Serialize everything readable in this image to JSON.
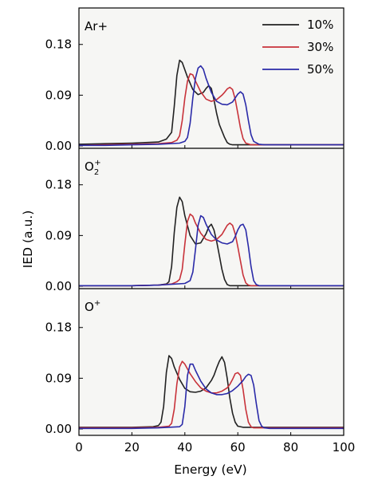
{
  "chart_data": {
    "type": "line",
    "xlabel": "Energy (eV)",
    "ylabel": "IED (a.u.)",
    "xlim": [
      0,
      100
    ],
    "ylim": [
      0,
      0.2
    ],
    "x_ticks": [
      "0",
      "20",
      "40",
      "60",
      "80",
      "100"
    ],
    "y_ticks": [
      "0.00",
      "0.09",
      "0.18"
    ],
    "grid": false,
    "legend": {
      "placement": "top-right of top panel",
      "entries": [
        {
          "label": "10%",
          "color": "#222222"
        },
        {
          "label": "30%",
          "color": "#c8323a"
        },
        {
          "label": "50%",
          "color": "#2a2aa8"
        }
      ]
    },
    "panels": [
      {
        "label": {
          "base": "Ar",
          "sup": "+",
          "inline": true
        },
        "series": [
          {
            "name": "10%",
            "color": "#222222",
            "x": [
              0,
              10,
              20,
              30,
              33,
              35,
              36,
              37,
              38,
              39,
              41,
              43,
              45,
              47,
              48,
              49,
              50,
              51,
              52,
              53,
              55,
              56,
              57,
              58,
              60,
              70,
              80,
              100
            ],
            "y": [
              0.003,
              0.004,
              0.005,
              0.007,
              0.012,
              0.024,
              0.07,
              0.125,
              0.152,
              0.148,
              0.122,
              0.1,
              0.091,
              0.095,
              0.102,
              0.107,
              0.102,
              0.082,
              0.058,
              0.038,
              0.015,
              0.006,
              0.003,
              0.002,
              0.002,
              0.002,
              0.002,
              0.002
            ]
          },
          {
            "name": "30%",
            "color": "#c8323a",
            "x": [
              0,
              10,
              20,
              30,
              35,
              37,
              38,
              39,
              40,
              41,
              42,
              43,
              44,
              46,
              48,
              50,
              52,
              54,
              55,
              56,
              57,
              58,
              59,
              60,
              61,
              62,
              63,
              65,
              70,
              80,
              100
            ],
            "y": [
              0.001,
              0.002,
              0.003,
              0.004,
              0.006,
              0.01,
              0.018,
              0.045,
              0.085,
              0.115,
              0.128,
              0.126,
              0.115,
              0.096,
              0.083,
              0.079,
              0.082,
              0.09,
              0.095,
              0.101,
              0.104,
              0.1,
              0.083,
              0.058,
              0.032,
              0.013,
              0.005,
              0.002,
              0.002,
              0.002,
              0.002
            ]
          },
          {
            "name": "50%",
            "color": "#2a2aa8",
            "x": [
              0,
              10,
              20,
              30,
              38,
              40,
              41,
              42,
              43,
              44,
              45,
              46,
              47,
              48,
              50,
              52,
              54,
              56,
              58,
              59,
              60,
              61,
              62,
              63,
              64,
              65,
              66,
              68,
              70,
              80,
              100
            ],
            "y": [
              0.001,
              0.001,
              0.002,
              0.003,
              0.005,
              0.008,
              0.015,
              0.04,
              0.085,
              0.12,
              0.138,
              0.142,
              0.136,
              0.12,
              0.095,
              0.079,
              0.074,
              0.073,
              0.078,
              0.085,
              0.092,
              0.096,
              0.092,
              0.073,
              0.045,
              0.02,
              0.008,
              0.003,
              0.002,
              0.002,
              0.002
            ]
          }
        ]
      },
      {
        "label": {
          "base": "O",
          "sub": "2",
          "sup": "+"
        },
        "series": [
          {
            "name": "10%",
            "color": "#222222",
            "x": [
              0,
              20,
              30,
              33,
              34,
              35,
              36,
              37,
              38,
              39,
              40,
              42,
              44,
              46,
              48,
              49,
              50,
              51,
              52,
              53,
              54,
              55,
              56,
              57,
              58,
              60,
              70,
              100
            ],
            "y": [
              0.001,
              0.001,
              0.002,
              0.004,
              0.008,
              0.035,
              0.095,
              0.14,
              0.158,
              0.15,
              0.125,
              0.09,
              0.075,
              0.077,
              0.093,
              0.105,
              0.11,
              0.1,
              0.08,
              0.055,
              0.03,
              0.012,
              0.003,
              0.001,
              0.001,
              0.001,
              0.001,
              0.001
            ]
          },
          {
            "name": "30%",
            "color": "#c8323a",
            "x": [
              0,
              20,
              30,
              35,
              37,
              38,
              39,
              40,
              41,
              42,
              43,
              44,
              46,
              48,
              50,
              52,
              54,
              55,
              56,
              57,
              58,
              59,
              60,
              61,
              62,
              63,
              64,
              65,
              70,
              100
            ],
            "y": [
              0.001,
              0.001,
              0.002,
              0.004,
              0.008,
              0.012,
              0.03,
              0.075,
              0.115,
              0.128,
              0.124,
              0.112,
              0.094,
              0.083,
              0.08,
              0.083,
              0.092,
              0.1,
              0.108,
              0.112,
              0.108,
              0.093,
              0.07,
              0.045,
              0.02,
              0.006,
              0.002,
              0.001,
              0.001,
              0.001
            ]
          },
          {
            "name": "50%",
            "color": "#2a2aa8",
            "x": [
              0,
              20,
              30,
              40,
              42,
              43,
              44,
              45,
              46,
              47,
              48,
              50,
              52,
              54,
              56,
              58,
              59,
              60,
              61,
              62,
              63,
              64,
              65,
              66,
              67,
              68,
              70,
              100
            ],
            "y": [
              0.001,
              0.001,
              0.002,
              0.005,
              0.01,
              0.025,
              0.065,
              0.108,
              0.125,
              0.122,
              0.11,
              0.092,
              0.082,
              0.077,
              0.075,
              0.079,
              0.088,
              0.1,
              0.108,
              0.11,
              0.1,
              0.07,
              0.035,
              0.01,
              0.003,
              0.001,
              0.001,
              0.001
            ]
          }
        ]
      },
      {
        "label": {
          "base": "O",
          "sup": "+"
        },
        "series": [
          {
            "name": "10%",
            "color": "#222222",
            "x": [
              0,
              20,
              28,
              30,
              31,
              32,
              33,
              34,
              35,
              36,
              38,
              40,
              42,
              44,
              46,
              48,
              50,
              51,
              52,
              53,
              54,
              55,
              56,
              57,
              58,
              59,
              60,
              62,
              70,
              100
            ],
            "y": [
              0.003,
              0.003,
              0.004,
              0.006,
              0.012,
              0.04,
              0.1,
              0.13,
              0.125,
              0.11,
              0.088,
              0.072,
              0.066,
              0.065,
              0.067,
              0.073,
              0.086,
              0.095,
              0.108,
              0.12,
              0.128,
              0.118,
              0.09,
              0.055,
              0.028,
              0.012,
              0.005,
              0.003,
              0.003,
              0.003
            ]
          },
          {
            "name": "30%",
            "color": "#c8323a",
            "x": [
              0,
              20,
              30,
              34,
              35,
              36,
              37,
              38,
              39,
              40,
              42,
              44,
              46,
              48,
              50,
              52,
              54,
              56,
              57,
              58,
              59,
              60,
              61,
              62,
              63,
              64,
              65,
              66,
              70,
              100
            ],
            "y": [
              0.002,
              0.002,
              0.003,
              0.005,
              0.01,
              0.035,
              0.08,
              0.11,
              0.12,
              0.115,
              0.098,
              0.084,
              0.073,
              0.067,
              0.064,
              0.064,
              0.067,
              0.073,
              0.079,
              0.088,
              0.098,
              0.1,
              0.095,
              0.07,
              0.035,
              0.012,
              0.004,
              0.002,
              0.002,
              0.002
            ]
          },
          {
            "name": "50%",
            "color": "#2a2aa8",
            "x": [
              0,
              20,
              30,
              38,
              39,
              40,
              41,
              42,
              43,
              44,
              46,
              48,
              50,
              52,
              54,
              56,
              58,
              60,
              62,
              63,
              64,
              65,
              66,
              67,
              68,
              69,
              70,
              72,
              80,
              100
            ],
            "y": [
              0.001,
              0.001,
              0.002,
              0.004,
              0.008,
              0.04,
              0.095,
              0.115,
              0.115,
              0.104,
              0.085,
              0.071,
              0.064,
              0.061,
              0.061,
              0.063,
              0.068,
              0.076,
              0.086,
              0.093,
              0.097,
              0.095,
              0.078,
              0.045,
              0.015,
              0.005,
              0.002,
              0.001,
              0.001,
              0.001
            ]
          }
        ]
      }
    ]
  }
}
